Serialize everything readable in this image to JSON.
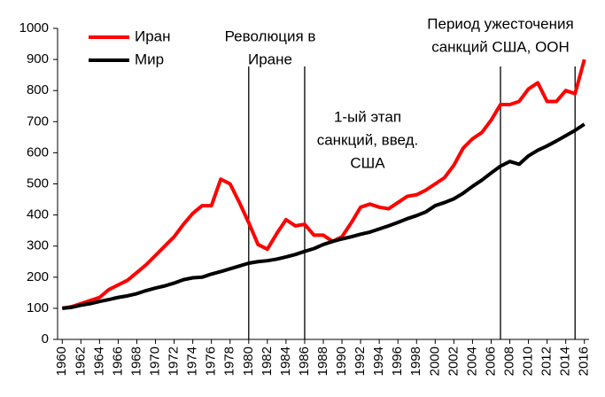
{
  "chart_data": {
    "type": "line",
    "x": [
      1960,
      1961,
      1962,
      1963,
      1964,
      1965,
      1966,
      1967,
      1968,
      1969,
      1970,
      1971,
      1972,
      1973,
      1974,
      1975,
      1976,
      1977,
      1978,
      1979,
      1980,
      1981,
      1982,
      1983,
      1984,
      1985,
      1986,
      1987,
      1988,
      1989,
      1990,
      1991,
      1992,
      1993,
      1994,
      1995,
      1996,
      1997,
      1998,
      1999,
      2000,
      2001,
      2002,
      2003,
      2004,
      2005,
      2006,
      2007,
      2008,
      2009,
      2010,
      2011,
      2012,
      2013,
      2014,
      2015,
      2016
    ],
    "series": [
      {
        "name": "Иран",
        "color": "#ff0000",
        "values": [
          100,
          105,
          115,
          125,
          135,
          160,
          175,
          190,
          215,
          240,
          270,
          300,
          330,
          370,
          405,
          430,
          430,
          515,
          500,
          440,
          375,
          305,
          290,
          340,
          385,
          365,
          370,
          335,
          335,
          315,
          330,
          375,
          425,
          435,
          425,
          420,
          440,
          460,
          465,
          480,
          500,
          520,
          560,
          615,
          645,
          665,
          705,
          755,
          755,
          765,
          805,
          825,
          765,
          765,
          800,
          790,
          900
        ]
      },
      {
        "name": "Мир",
        "color": "#000000",
        "values": [
          100,
          103,
          110,
          115,
          122,
          128,
          135,
          140,
          147,
          157,
          165,
          172,
          181,
          192,
          198,
          200,
          210,
          218,
          227,
          236,
          245,
          250,
          253,
          258,
          265,
          273,
          283,
          292,
          305,
          315,
          323,
          330,
          338,
          345,
          355,
          365,
          376,
          388,
          398,
          410,
          430,
          440,
          452,
          470,
          492,
          512,
          535,
          557,
          572,
          563,
          590,
          608,
          622,
          638,
          655,
          672,
          692
        ]
      }
    ],
    "xlim": [
      1959.5,
      2016.5
    ],
    "xticks": [
      1960,
      1962,
      1964,
      1966,
      1968,
      1970,
      1972,
      1974,
      1976,
      1978,
      1980,
      1982,
      1984,
      1986,
      1988,
      1990,
      1992,
      1994,
      1996,
      1998,
      2000,
      2002,
      2004,
      2006,
      2008,
      2010,
      2012,
      2014,
      2016
    ],
    "ylim": [
      0,
      1000
    ],
    "yticks": [
      0,
      100,
      200,
      300,
      400,
      500,
      600,
      700,
      800,
      900,
      1000
    ],
    "vlines": [
      1980,
      1986,
      2007,
      2015
    ],
    "annotations": [
      {
        "lines": [
          "Революция в",
          "Иране"
        ]
      },
      {
        "lines": [
          "1-ый этап",
          "санкций, введ.",
          "США"
        ]
      },
      {
        "lines": [
          "Период ужесточения",
          "санкций США, ООН"
        ]
      }
    ],
    "grid": false
  }
}
